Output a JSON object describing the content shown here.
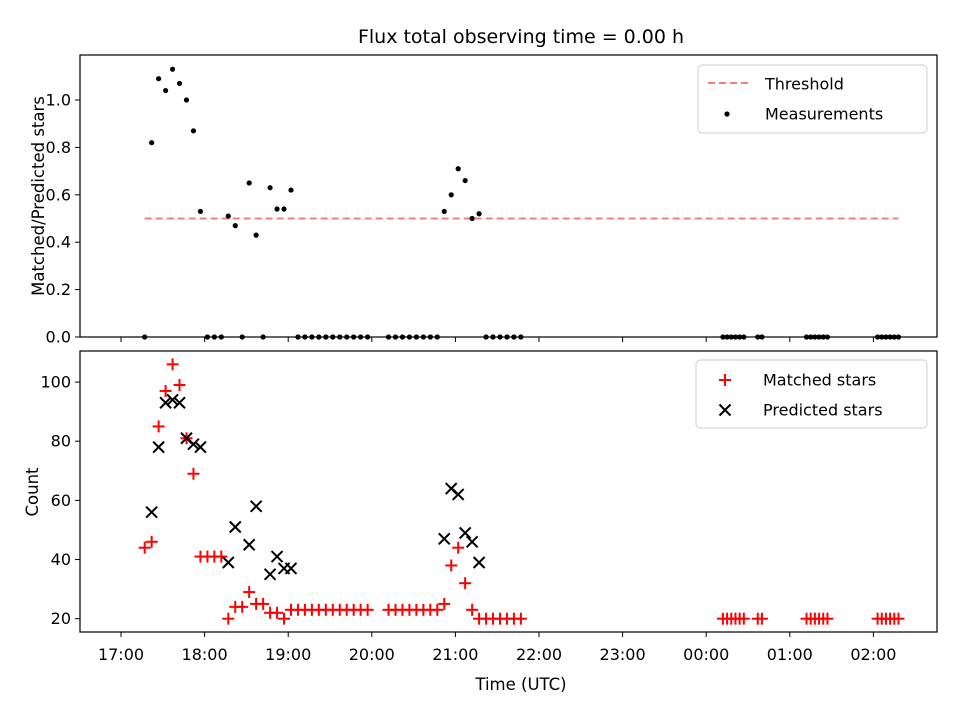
{
  "figure": {
    "title": "Flux total observing time = 0.00 h",
    "xlabel": "Time (UTC)",
    "xticks": [
      "17:00",
      "18:00",
      "19:00",
      "20:00",
      "21:00",
      "22:00",
      "23:00",
      "00:00",
      "01:00",
      "02:00"
    ]
  },
  "chart_data": [
    {
      "type": "scatter",
      "ylabel": "Matched/Predicted stars",
      "ylim": [
        0,
        1.19
      ],
      "yticks": [
        "0.0",
        "0.2",
        "0.4",
        "0.6",
        "0.8",
        "1.0"
      ],
      "legend_position": "top-right",
      "threshold": {
        "name": "Threshold",
        "value": 0.5,
        "color": "#f08080",
        "style": "dashed",
        "x_range": [
          "17:17",
          "26:18"
        ]
      },
      "series": [
        {
          "name": "Measurements",
          "color": "#000000",
          "marker": "dot",
          "x": [
            "17:17",
            "17:22",
            "17:27",
            "17:32",
            "17:37",
            "17:42",
            "17:47",
            "17:52",
            "17:57",
            "18:02",
            "18:07",
            "18:12",
            "18:17",
            "18:22",
            "18:27",
            "18:32",
            "18:37",
            "18:42",
            "18:47",
            "18:52",
            "18:57",
            "19:02",
            "19:07",
            "19:12",
            "19:17",
            "19:22",
            "19:27",
            "19:32",
            "19:37",
            "19:42",
            "19:47",
            "19:52",
            "19:57",
            "20:12",
            "20:17",
            "20:22",
            "20:27",
            "20:32",
            "20:37",
            "20:42",
            "20:47",
            "20:52",
            "20:57",
            "21:02",
            "21:07",
            "21:12",
            "21:17",
            "21:22",
            "21:27",
            "21:32",
            "21:37",
            "21:42",
            "21:47",
            "24:12",
            "24:15",
            "24:18",
            "24:21",
            "24:24",
            "24:27",
            "24:37",
            "24:40",
            "25:12",
            "25:15",
            "25:18",
            "25:21",
            "25:24",
            "25:27",
            "26:03",
            "26:06",
            "26:09",
            "26:12",
            "26:15",
            "26:18"
          ],
          "y": [
            0.0,
            0.82,
            1.09,
            1.04,
            1.13,
            1.07,
            1.0,
            0.87,
            0.53,
            0.0,
            0.0,
            0.0,
            0.51,
            0.47,
            0.0,
            0.65,
            0.43,
            0.0,
            0.63,
            0.54,
            0.54,
            0.62,
            0.0,
            0.0,
            0.0,
            0.0,
            0.0,
            0.0,
            0.0,
            0.0,
            0.0,
            0.0,
            0.0,
            0.0,
            0.0,
            0.0,
            0.0,
            0.0,
            0.0,
            0.0,
            0.0,
            0.53,
            0.6,
            0.71,
            0.66,
            0.5,
            0.52,
            0.0,
            0.0,
            0.0,
            0.0,
            0.0,
            0.0,
            0.0,
            0.0,
            0.0,
            0.0,
            0.0,
            0.0,
            0.0,
            0.0,
            0.0,
            0.0,
            0.0,
            0.0,
            0.0,
            0.0,
            0.0,
            0.0,
            0.0,
            0.0,
            0.0,
            0.0
          ]
        }
      ]
    },
    {
      "type": "scatter",
      "ylabel": "Count",
      "ylim": [
        15.5,
        110.5
      ],
      "yticks": [
        "20",
        "40",
        "60",
        "80",
        "100"
      ],
      "legend_position": "top-right",
      "series": [
        {
          "name": "Matched stars",
          "color": "#ff0000",
          "marker": "plus",
          "x": [
            "17:17",
            "17:22",
            "17:27",
            "17:32",
            "17:37",
            "17:42",
            "17:47",
            "17:52",
            "17:57",
            "18:02",
            "18:07",
            "18:12",
            "18:17",
            "18:22",
            "18:27",
            "18:32",
            "18:37",
            "18:42",
            "18:47",
            "18:52",
            "18:57",
            "19:02",
            "19:07",
            "19:12",
            "19:17",
            "19:22",
            "19:27",
            "19:32",
            "19:37",
            "19:42",
            "19:47",
            "19:52",
            "19:57",
            "20:12",
            "20:17",
            "20:22",
            "20:27",
            "20:32",
            "20:37",
            "20:42",
            "20:47",
            "20:52",
            "20:57",
            "21:02",
            "21:07",
            "21:12",
            "21:17",
            "21:22",
            "21:27",
            "21:32",
            "21:37",
            "21:42",
            "21:47",
            "24:12",
            "24:15",
            "24:18",
            "24:21",
            "24:24",
            "24:27",
            "24:37",
            "24:40",
            "25:12",
            "25:15",
            "25:18",
            "25:21",
            "25:24",
            "25:27",
            "26:03",
            "26:06",
            "26:09",
            "26:12",
            "26:15",
            "26:18"
          ],
          "y": [
            44,
            46,
            85,
            97,
            106,
            99,
            81,
            69,
            41,
            41,
            41,
            41,
            20,
            24,
            24,
            29,
            25,
            25,
            22,
            22,
            20,
            23,
            23,
            23,
            23,
            23,
            23,
            23,
            23,
            23,
            23,
            23,
            23,
            23,
            23,
            23,
            23,
            23,
            23,
            23,
            23,
            25,
            38,
            44,
            32,
            23,
            20,
            20,
            20,
            20,
            20,
            20,
            20,
            20,
            20,
            20,
            20,
            20,
            20,
            20,
            20,
            20,
            20,
            20,
            20,
            20,
            20,
            20,
            20,
            20,
            20,
            20,
            20
          ]
        },
        {
          "name": "Predicted stars",
          "color": "#000000",
          "marker": "x",
          "x": [
            "17:22",
            "17:27",
            "17:32",
            "17:37",
            "17:42",
            "17:47",
            "17:52",
            "17:57",
            "18:17",
            "18:22",
            "18:32",
            "18:37",
            "18:47",
            "18:52",
            "18:57",
            "19:02",
            "20:52",
            "20:57",
            "21:02",
            "21:07",
            "21:12",
            "21:17"
          ],
          "y": [
            56,
            78,
            93,
            94,
            93,
            81,
            79,
            78,
            39,
            51,
            45,
            58,
            35,
            41,
            37,
            37,
            47,
            64,
            62,
            49,
            46,
            39
          ]
        }
      ]
    }
  ]
}
